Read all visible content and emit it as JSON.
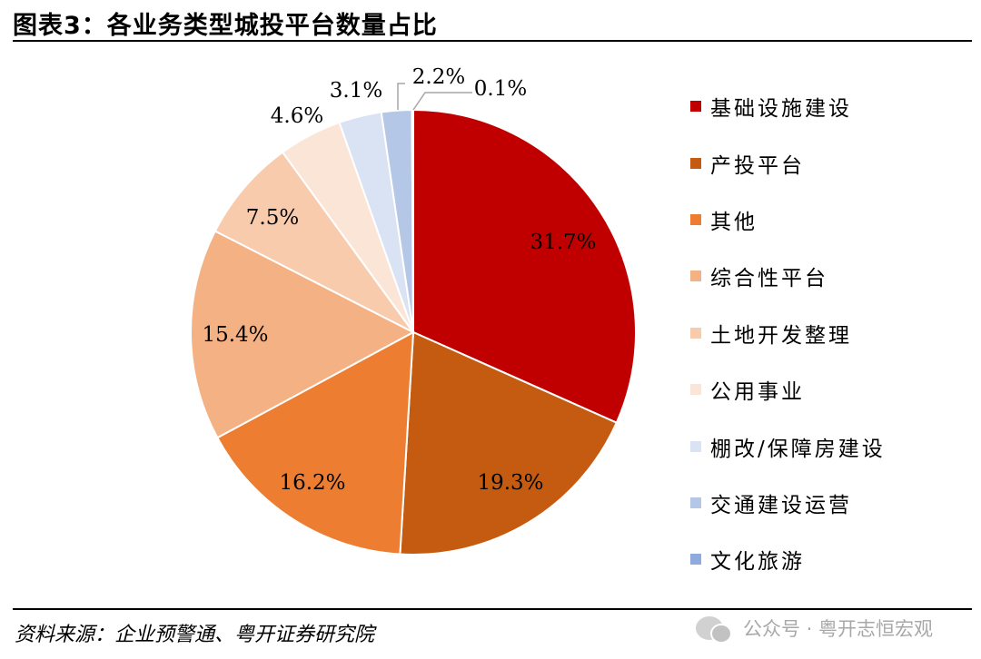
{
  "title": "图表3：各业务类型城投平台数量占比",
  "source": "资料来源：企业预警通、粤开证券研究院",
  "watermark": "公众号 · 粤开志恒宏观",
  "chart_data": {
    "type": "pie",
    "title": "图表3：各业务类型城投平台数量占比",
    "legend_position": "right",
    "start": "12 o'clock, clockwise",
    "slices": [
      {
        "name": "基础设施建设",
        "value": 31.7,
        "label": "31.7%",
        "color": "#C00000"
      },
      {
        "name": "产投平台",
        "value": 19.3,
        "label": "19.3%",
        "color": "#C55A11"
      },
      {
        "name": "其他",
        "value": 16.2,
        "label": "16.2%",
        "color": "#ED7D31"
      },
      {
        "name": "综合性平台",
        "value": 15.4,
        "label": "15.4%",
        "color": "#F4B183"
      },
      {
        "name": "土地开发整理",
        "value": 7.5,
        "label": "7.5%",
        "color": "#F8CBAD"
      },
      {
        "name": "公用事业",
        "value": 4.6,
        "label": "4.6%",
        "color": "#FBE5D6"
      },
      {
        "name": "棚改/保障房建设",
        "value": 3.1,
        "label": "3.1%",
        "color": "#DAE3F3"
      },
      {
        "name": "交通建设运营",
        "value": 2.2,
        "label": "2.2%",
        "color": "#B4C7E7"
      },
      {
        "name": "文化旅游",
        "value": 0.1,
        "label": "0.1%",
        "color": "#8FAADC"
      }
    ]
  }
}
